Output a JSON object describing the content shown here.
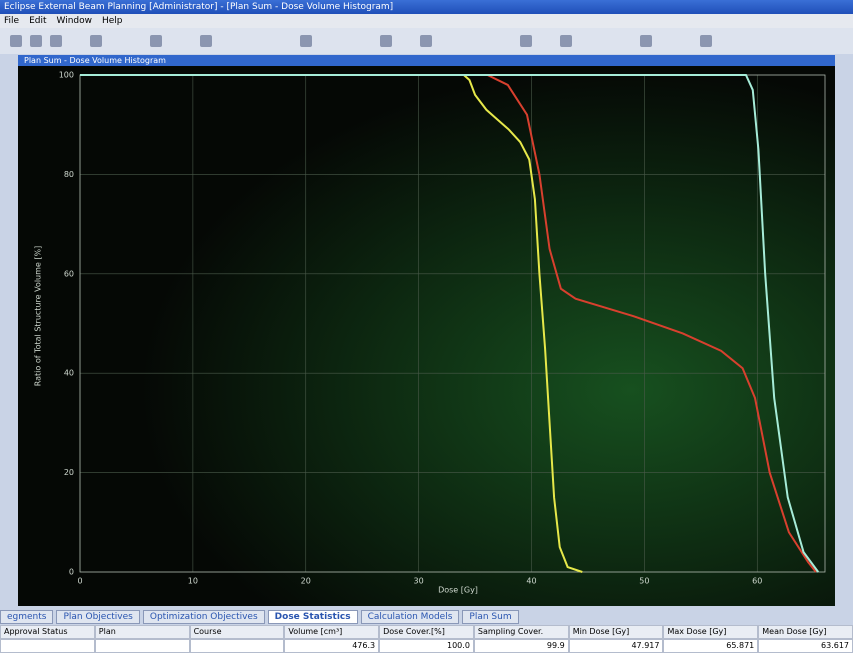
{
  "window": {
    "title": "Eclipse External Beam Planning [Administrator] - [Plan Sum - Dose Volume Histogram]",
    "menu": [
      "File",
      "Edit",
      "Window",
      "Help"
    ]
  },
  "panel_title": "Plan Sum - Dose Volume Histogram",
  "chart_data": {
    "type": "line",
    "x_label": "Dose [Gy]",
    "y_label": "Ratio of Total Structure Volume [%]",
    "xlim": [
      0,
      66
    ],
    "xticks": [
      0,
      10,
      20,
      30,
      40,
      50,
      60
    ],
    "ylim": [
      0,
      100
    ],
    "yticks": [
      0,
      20,
      40,
      60,
      80,
      100
    ],
    "grid": true,
    "series": [
      {
        "color": "#e6e84a",
        "x": [
          0,
          34,
          34.5,
          35,
          36,
          37,
          38,
          39,
          39.8,
          40.3,
          40.7,
          41.2,
          41.6,
          42,
          42.5,
          43.2,
          44.5
        ],
        "values": [
          100,
          100,
          99,
          96,
          93,
          91,
          89,
          86.5,
          83,
          75,
          60,
          45,
          30,
          15,
          5,
          1,
          0
        ]
      },
      {
        "color": "#d8402e",
        "x": [
          0,
          36.1,
          37.9,
          39.6,
          40.7,
          41.6,
          42.6,
          43.9,
          49,
          53.4,
          56.8,
          58.7,
          59.8,
          61.1,
          62.8,
          64.5,
          65.2
        ],
        "values": [
          100,
          100,
          98,
          92,
          80,
          65,
          57,
          55,
          51.5,
          48,
          44.5,
          41,
          35,
          20,
          8,
          2,
          0
        ]
      },
      {
        "color": "#a6ecd8",
        "x": [
          0,
          59,
          59.6,
          60.1,
          60.7,
          61.5,
          62.7,
          64.1,
          65.4
        ],
        "values": [
          100,
          100,
          97,
          85,
          60,
          35,
          15,
          4,
          0
        ]
      }
    ]
  },
  "tabs": [
    "egments",
    "Plan Objectives",
    "Optimization Objectives",
    "Dose Statistics",
    "Calculation Models",
    "Plan Sum"
  ],
  "table": {
    "columns": [
      "Approval Status",
      "Plan",
      "Course",
      "Volume [cm³]",
      "Dose Cover.[%]",
      "Sampling Cover.",
      "Min Dose [Gy]",
      "Max Dose [Gy]",
      "Mean Dose [Gy]"
    ],
    "rows": [
      [
        "",
        "",
        "",
        "476.3",
        "100.0",
        "99.9",
        "47.917",
        "65.871",
        "63.617"
      ]
    ]
  }
}
